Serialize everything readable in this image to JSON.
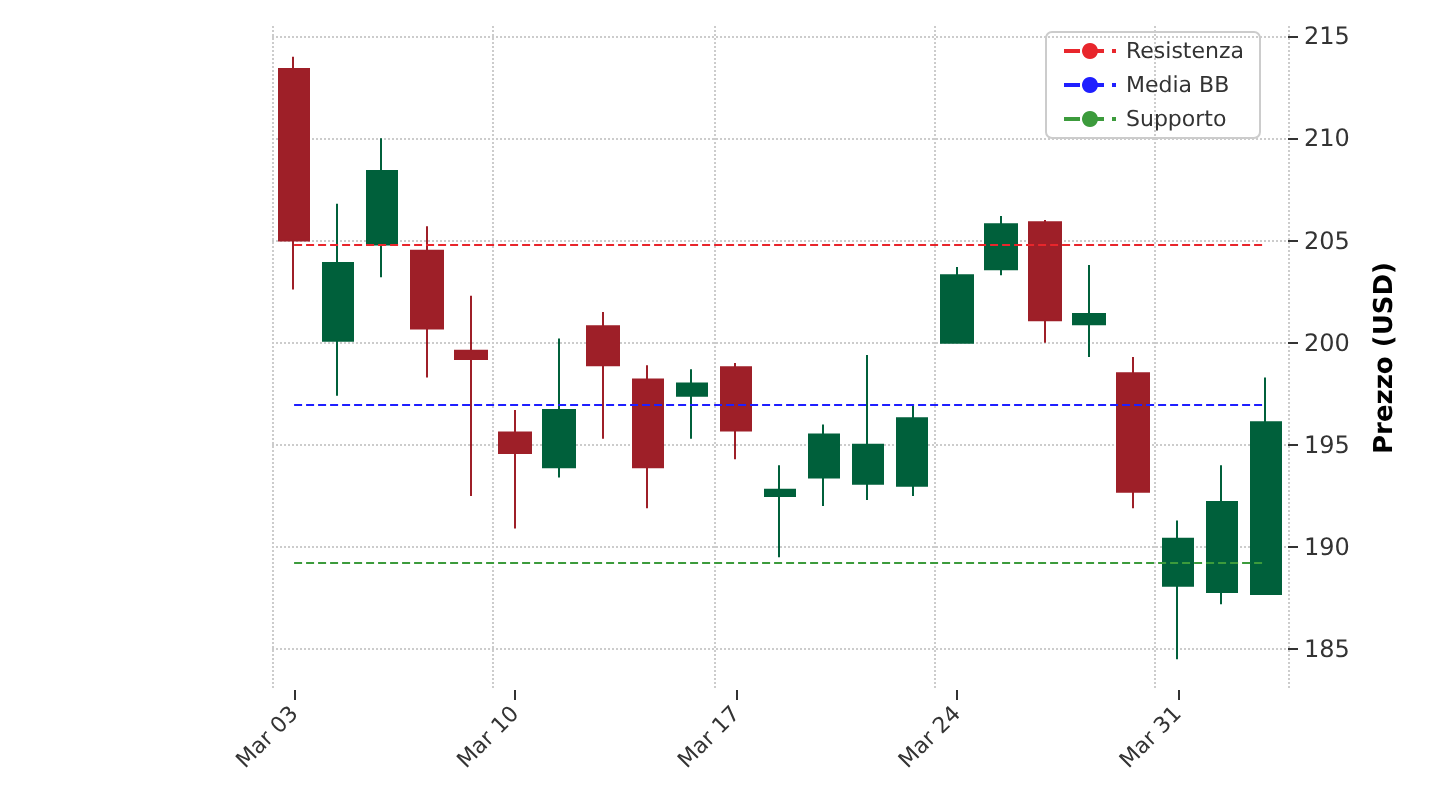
{
  "chart_data": {
    "type": "candlestick",
    "ylabel": "Prezzo (USD)",
    "categories": [
      "Mar 03",
      null,
      null,
      null,
      null,
      "Mar 10",
      null,
      null,
      null,
      null,
      "Mar 17",
      null,
      null,
      null,
      null,
      "Mar 24",
      null,
      null,
      null,
      null,
      "Mar 31",
      null,
      null
    ],
    "ohlc": [
      [
        213.4,
        214.0,
        202.6,
        205.0
      ],
      [
        200.1,
        206.8,
        197.4,
        203.9
      ],
      [
        204.8,
        210.0,
        203.2,
        208.4
      ],
      [
        204.5,
        205.7,
        198.3,
        200.7
      ],
      [
        199.6,
        202.3,
        192.5,
        199.2
      ],
      [
        195.6,
        196.7,
        190.9,
        194.6
      ],
      [
        193.9,
        200.2,
        193.4,
        196.7
      ],
      [
        200.8,
        201.5,
        195.3,
        198.9
      ],
      [
        198.2,
        198.9,
        191.9,
        193.9
      ],
      [
        197.4,
        198.7,
        195.3,
        198.0
      ],
      [
        198.8,
        199.0,
        194.3,
        195.7
      ],
      [
        192.5,
        194.0,
        189.5,
        192.8
      ],
      [
        193.4,
        196.0,
        192.0,
        195.5
      ],
      [
        193.1,
        199.4,
        192.3,
        195.0
      ],
      [
        193.0,
        197.0,
        192.5,
        196.3
      ],
      [
        200.0,
        203.7,
        200.0,
        203.3
      ],
      [
        203.6,
        206.2,
        203.3,
        205.8
      ],
      [
        205.9,
        206.0,
        200.0,
        201.1
      ],
      [
        200.9,
        203.8,
        199.3,
        201.4
      ],
      [
        198.5,
        199.3,
        191.9,
        192.7
      ],
      [
        188.1,
        191.3,
        184.5,
        190.4
      ],
      [
        187.8,
        194.0,
        187.2,
        192.2
      ],
      [
        187.7,
        198.3,
        187.7,
        196.1
      ]
    ],
    "colors": [
      "#9e1f28",
      "#00603b",
      "#00603b",
      "#9e1f28",
      "#9e1f28",
      "#9e1f28",
      "#00603b",
      "#9e1f28",
      "#9e1f28",
      "#00603b",
      "#9e1f28",
      "#00603b",
      "#00603b",
      "#00603b",
      "#00603b",
      "#00603b",
      "#00603b",
      "#9e1f28",
      "#00603b",
      "#9e1f28",
      "#00603b",
      "#00603b",
      "#00603b"
    ],
    "ylim": [
      183,
      215.5
    ],
    "yticks": [
      185,
      190,
      195,
      200,
      205,
      210,
      215
    ],
    "ref_lines": [
      {
        "axis": "y",
        "value": 204.8,
        "label": "Resistenza",
        "color": "#e8262c",
        "line_style": "dashed"
      },
      {
        "axis": "y",
        "value": 197.0,
        "label": "Media BB",
        "color": "#1f1fff",
        "line_style": "dashed"
      },
      {
        "axis": "y",
        "value": 189.2,
        "label": "Supporto",
        "color": "#3c9b3c",
        "line_style": "dashed"
      }
    ],
    "legend": "top right",
    "grid": true
  }
}
